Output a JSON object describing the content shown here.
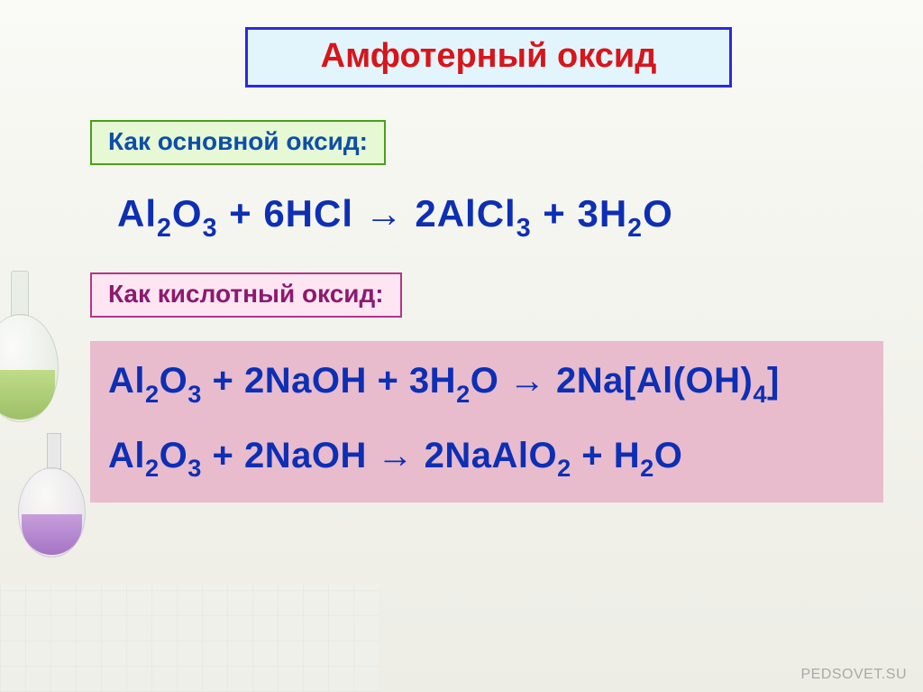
{
  "title": "Амфотерный оксид",
  "sub_basic": "Как основной оксид:",
  "sub_acidic": "Как кислотный оксид:",
  "eq1": {
    "p1": "Al",
    "s1": "2",
    "p2": "O",
    "s2": "3",
    "plus1": " + 6HCl ",
    "arrow": "→",
    "p3": " 2AlCl",
    "s3": "3",
    "plus2": " + 3H",
    "s4": "2",
    "p4": "O"
  },
  "eq2": {
    "p1": "Al",
    "s1": "2",
    "p2": "O",
    "s2": "3",
    "plus1": " + 2NaOH + 3H",
    "s3": "2",
    "p3": "O ",
    "arrow": "→",
    "p4": " 2Na[Al(OH)",
    "s4": "4",
    "p5": "]"
  },
  "eq3": {
    "p1": "Al",
    "s1": "2",
    "p2": "O",
    "s2": "3",
    "plus1": " + 2NaOH ",
    "arrow": "→",
    "p3": " 2NaAlO",
    "s3": "2",
    "plus2": " + H",
    "s4": "2",
    "p4": "O"
  },
  "watermark": "PEDSOVET.SU",
  "colors": {
    "title_bg": "#e2f5fd",
    "title_border": "#2a2ae0",
    "title_text": "#d8151b",
    "sub1_bg": "#e6f8d4",
    "sub1_border": "#49a018",
    "sub1_text": "#0d4ea8",
    "sub2_bg": "#fde6f2",
    "sub2_border": "#b83388",
    "sub2_text": "#8d1a6f",
    "eq_text": "#0d2fb5",
    "eq_block_bg": "#e8bccd"
  }
}
